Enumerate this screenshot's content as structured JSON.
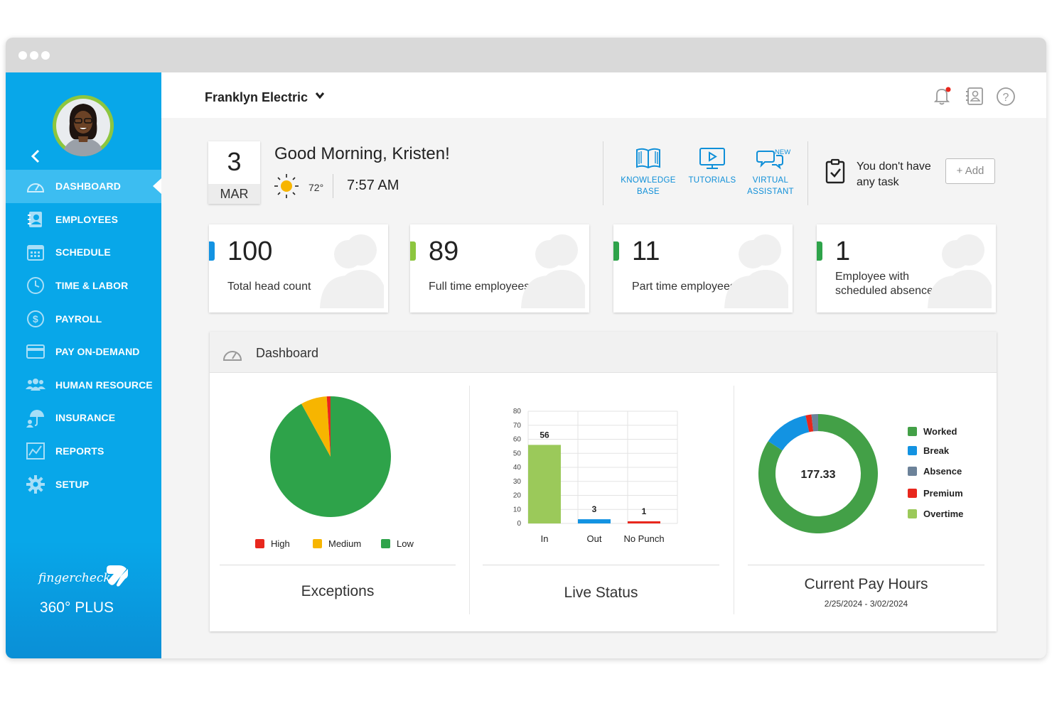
{
  "colors": {
    "sidebar": "#08a7e9",
    "accent": "#0f8fd8",
    "green": "#2ea34a",
    "light_green": "#9bc95a",
    "orange": "#f7b500",
    "red": "#e8271d",
    "blue": "#1393e2",
    "gray_blue": "#6c8299"
  },
  "sidebar": {
    "items": [
      {
        "label": "DASHBOARD",
        "icon": "speedometer-icon"
      },
      {
        "label": "EMPLOYEES",
        "icon": "employee-book-icon"
      },
      {
        "label": "SCHEDULE",
        "icon": "calendar-icon"
      },
      {
        "label": "TIME & LABOR",
        "icon": "clock-icon"
      },
      {
        "label": "PAYROLL",
        "icon": "dollar-icon"
      },
      {
        "label": "PAY ON-DEMAND",
        "icon": "card-icon"
      },
      {
        "label": "HUMAN RESOURCE",
        "icon": "people-icon"
      },
      {
        "label": "INSURANCE",
        "icon": "umbrella-icon"
      },
      {
        "label": "REPORTS",
        "icon": "chart-icon"
      },
      {
        "label": "SETUP",
        "icon": "gear-icon"
      }
    ],
    "brand_name": "fingercheck",
    "brand_plan": "360° PLUS"
  },
  "header": {
    "company": "Franklyn Electric"
  },
  "today": {
    "day": "3",
    "month": "MAR",
    "greeting": "Good Morning, Kristen!",
    "temperature": "72°",
    "time": "7:57 AM"
  },
  "quick_links": {
    "knowledge_line1": "KNOWLEDGE",
    "knowledge_line2": "BASE",
    "tutorials": "TUTORIALS",
    "assistant_line1": "VIRTUAL",
    "assistant_line2": "ASSISTANT",
    "new_tag": "NEW"
  },
  "tasks": {
    "line1": "You don't have",
    "line2": "any task",
    "add_label": "Add"
  },
  "stats": [
    {
      "value": "100",
      "label": "Total head count",
      "label2": "",
      "color": "#1393e2"
    },
    {
      "value": "89",
      "label": "Full time employees",
      "label2": "",
      "color": "#8dc63f"
    },
    {
      "value": "11",
      "label": "Part time employees",
      "label2": "",
      "color": "#2ea34a"
    },
    {
      "value": "1",
      "label": "Employee with",
      "label2": "scheduled absence",
      "color": "#2ea34a"
    }
  ],
  "panel": {
    "title": "Dashboard"
  },
  "chart_data": [
    {
      "type": "pie",
      "title": "Exceptions",
      "categories": [
        "High",
        "Medium",
        "Low"
      ],
      "values": [
        1,
        7,
        92
      ],
      "colors": [
        "#e8271d",
        "#f7b500",
        "#2ea34a"
      ]
    },
    {
      "type": "bar",
      "title": "Live Status",
      "categories": [
        "In",
        "Out",
        "No Punch"
      ],
      "values": [
        56,
        3,
        1
      ],
      "colors": [
        "#9bc95a",
        "#1393e2",
        "#e8271d"
      ],
      "y_ticks": [
        "80",
        "70",
        "60",
        "50",
        "40",
        "30",
        "20",
        "10",
        "0"
      ],
      "ylim": [
        0,
        80
      ],
      "grid": true
    },
    {
      "type": "pie",
      "title": "Current Pay Hours",
      "subtitle": "2/25/2024 - 3/02/2024",
      "center_label": "177.33",
      "categories": [
        "Worked",
        "Break",
        "Absence",
        "Premium",
        "Overtime"
      ],
      "values": [
        149.3,
        22.0,
        3.2,
        2.8,
        0
      ],
      "colors": [
        "#43a047",
        "#1393e2",
        "#6c8299",
        "#e8271d",
        "#9bc95a"
      ],
      "legend_position": "right"
    }
  ]
}
